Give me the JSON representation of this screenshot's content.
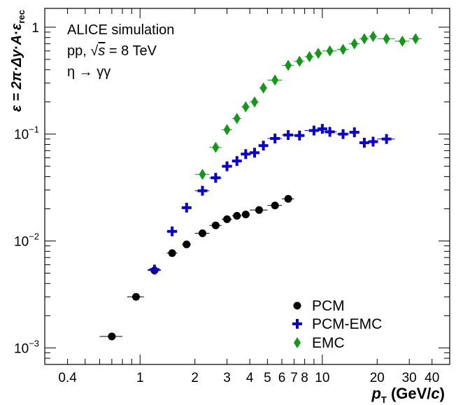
{
  "chart_data": {
    "type": "scatter",
    "xscale": "log",
    "yscale": "log",
    "xlim": [
      0.3,
      50
    ],
    "ylim": [
      0.0007,
      1.5
    ],
    "x_ticks": [
      0.4,
      1,
      2,
      3,
      4,
      5,
      6,
      7,
      8,
      10,
      20,
      30,
      40
    ],
    "x_tick_labels": [
      "0.4",
      "1",
      "2",
      "3",
      "4",
      "5",
      "6",
      "7",
      "8",
      "10",
      "20",
      "30",
      "40"
    ],
    "y_ticks": [
      0.001,
      0.01,
      0.1,
      1
    ],
    "y_tick_labels": [
      {
        "base": "10",
        "exp": "−3"
      },
      {
        "base": "10",
        "exp": "−2"
      },
      {
        "base": "10",
        "exp": "−1"
      },
      {
        "base": "1",
        "exp": ""
      }
    ],
    "xlabel": {
      "main": "p",
      "sub": "T",
      "unit_pre": " (GeV/",
      "unit_var": "c",
      "unit_post": ")"
    },
    "ylabel": {
      "pre": "ε = 2π·Δ",
      "y": "y",
      "mid": "·",
      "a": "A",
      "dot": "·",
      "eps": "ε",
      "sub": "rec"
    },
    "annotations": {
      "line1": "ALICE simulation",
      "line2_pre": "pp, ",
      "line2_sqrt": "√",
      "line2_s": "s",
      "line2_post": " = 8 TeV",
      "line3": "η → γγ"
    },
    "legend_position": "bottom-right",
    "series": [
      {
        "name": "PCM",
        "marker": "circle",
        "color": "#000000",
        "points": [
          {
            "x": 0.7,
            "xlo": 0.6,
            "xhi": 0.8,
            "y": 0.00128
          },
          {
            "x": 0.95,
            "xlo": 0.85,
            "xhi": 1.05,
            "y": 0.003
          },
          {
            "x": 1.2,
            "xlo": 1.1,
            "xhi": 1.3,
            "y": 0.0053
          },
          {
            "x": 1.5,
            "xlo": 1.4,
            "xhi": 1.6,
            "y": 0.0077
          },
          {
            "x": 1.8,
            "xlo": 1.7,
            "xhi": 1.9,
            "y": 0.0093
          },
          {
            "x": 2.2,
            "xlo": 2.0,
            "xhi": 2.4,
            "y": 0.0118
          },
          {
            "x": 2.6,
            "xlo": 2.4,
            "xhi": 2.8,
            "y": 0.014
          },
          {
            "x": 3.0,
            "xlo": 2.8,
            "xhi": 3.2,
            "y": 0.016
          },
          {
            "x": 3.4,
            "xlo": 3.2,
            "xhi": 3.6,
            "y": 0.0172
          },
          {
            "x": 3.8,
            "xlo": 3.6,
            "xhi": 4.0,
            "y": 0.0177
          },
          {
            "x": 4.5,
            "xlo": 4.0,
            "xhi": 5.0,
            "y": 0.0195
          },
          {
            "x": 5.5,
            "xlo": 5.0,
            "xhi": 6.0,
            "y": 0.0215
          },
          {
            "x": 6.5,
            "xlo": 6.0,
            "xhi": 7.0,
            "y": 0.0248
          }
        ]
      },
      {
        "name": "PCM-EMC",
        "marker": "cross",
        "color": "#0a00c8",
        "points": [
          {
            "x": 1.2,
            "xlo": 1.1,
            "xhi": 1.3,
            "y": 0.0054
          },
          {
            "x": 1.5,
            "xlo": 1.4,
            "xhi": 1.6,
            "y": 0.0123
          },
          {
            "x": 1.8,
            "xlo": 1.7,
            "xhi": 1.9,
            "y": 0.0205
          },
          {
            "x": 2.2,
            "xlo": 2.0,
            "xhi": 2.4,
            "y": 0.0295
          },
          {
            "x": 2.6,
            "xlo": 2.4,
            "xhi": 2.8,
            "y": 0.039
          },
          {
            "x": 3.0,
            "xlo": 2.8,
            "xhi": 3.2,
            "y": 0.05
          },
          {
            "x": 3.4,
            "xlo": 3.2,
            "xhi": 3.6,
            "y": 0.056
          },
          {
            "x": 3.8,
            "xlo": 3.6,
            "xhi": 4.0,
            "y": 0.065
          },
          {
            "x": 4.25,
            "xlo": 4.0,
            "xhi": 4.5,
            "y": 0.067
          },
          {
            "x": 4.75,
            "xlo": 4.5,
            "xhi": 5.0,
            "y": 0.078
          },
          {
            "x": 5.5,
            "xlo": 5.0,
            "xhi": 6.0,
            "y": 0.091
          },
          {
            "x": 6.5,
            "xlo": 6.0,
            "xhi": 7.0,
            "y": 0.098
          },
          {
            "x": 7.5,
            "xlo": 7.0,
            "xhi": 8.0,
            "y": 0.097
          },
          {
            "x": 9.0,
            "xlo": 8.0,
            "xhi": 10.0,
            "y": 0.108
          },
          {
            "x": 10.0,
            "xlo": 9.5,
            "xhi": 10.5,
            "y": 0.112
          },
          {
            "x": 11.0,
            "xlo": 10.0,
            "xhi": 12.0,
            "y": 0.105
          },
          {
            "x": 13.0,
            "xlo": 12.0,
            "xhi": 14.0,
            "y": 0.1
          },
          {
            "x": 15.0,
            "xlo": 14.0,
            "xhi": 16.0,
            "y": 0.104
          },
          {
            "x": 17.0,
            "xlo": 16.0,
            "xhi": 18.0,
            "y": 0.083
          },
          {
            "x": 19.0,
            "xlo": 18.0,
            "xhi": 20.0,
            "y": 0.085
          },
          {
            "x": 22.5,
            "xlo": 20.0,
            "xhi": 25.0,
            "y": 0.09
          }
        ]
      },
      {
        "name": "EMC",
        "marker": "diamond",
        "color": "#16961c",
        "points": [
          {
            "x": 2.2,
            "xlo": 2.0,
            "xhi": 2.4,
            "y": 0.042
          },
          {
            "x": 2.6,
            "xlo": 2.4,
            "xhi": 2.8,
            "y": 0.075
          },
          {
            "x": 3.0,
            "xlo": 2.8,
            "xhi": 3.2,
            "y": 0.11
          },
          {
            "x": 3.4,
            "xlo": 3.2,
            "xhi": 3.6,
            "y": 0.14
          },
          {
            "x": 3.8,
            "xlo": 3.6,
            "xhi": 4.0,
            "y": 0.18
          },
          {
            "x": 4.25,
            "xlo": 4.0,
            "xhi": 4.5,
            "y": 0.2
          },
          {
            "x": 4.75,
            "xlo": 4.5,
            "xhi": 5.0,
            "y": 0.27
          },
          {
            "x": 5.5,
            "xlo": 5.0,
            "xhi": 6.0,
            "y": 0.32
          },
          {
            "x": 6.5,
            "xlo": 6.0,
            "xhi": 7.0,
            "y": 0.44
          },
          {
            "x": 7.5,
            "xlo": 7.0,
            "xhi": 8.0,
            "y": 0.48
          },
          {
            "x": 8.5,
            "xlo": 8.0,
            "xhi": 9.0,
            "y": 0.53
          },
          {
            "x": 9.5,
            "xlo": 9.0,
            "xhi": 10.0,
            "y": 0.57
          },
          {
            "x": 11.0,
            "xlo": 10.0,
            "xhi": 12.0,
            "y": 0.6
          },
          {
            "x": 13.0,
            "xlo": 12.0,
            "xhi": 14.0,
            "y": 0.62
          },
          {
            "x": 15.0,
            "xlo": 14.0,
            "xhi": 16.0,
            "y": 0.7
          },
          {
            "x": 17.0,
            "xlo": 16.0,
            "xhi": 18.0,
            "y": 0.78
          },
          {
            "x": 19.0,
            "xlo": 18.0,
            "xhi": 20.0,
            "y": 0.82
          },
          {
            "x": 22.5,
            "xlo": 20.0,
            "xhi": 25.0,
            "y": 0.78
          },
          {
            "x": 27.5,
            "xlo": 25.0,
            "xhi": 30.0,
            "y": 0.74
          },
          {
            "x": 32.5,
            "xlo": 30.0,
            "xhi": 35.0,
            "y": 0.78
          }
        ]
      }
    ]
  }
}
